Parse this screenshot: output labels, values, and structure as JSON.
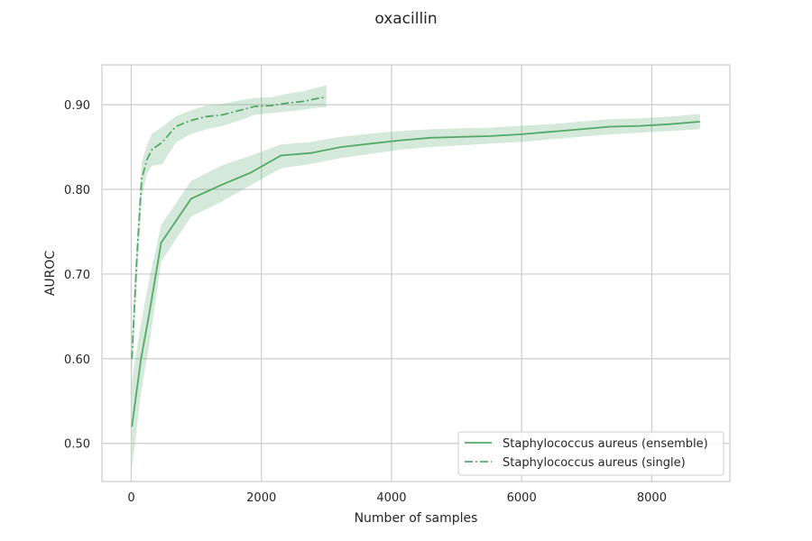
{
  "chart_data": {
    "type": "line",
    "title": "oxacillin",
    "xlabel": "Number of samples",
    "ylabel": "AUROC",
    "xlim": [
      -450,
      9200
    ],
    "ylim": [
      0.455,
      0.947
    ],
    "xticks": [
      0,
      2000,
      4000,
      6000,
      8000
    ],
    "xtick_labels": [
      "0",
      "2000",
      "4000",
      "6000",
      "8000"
    ],
    "yticks": [
      0.5,
      0.6,
      0.7,
      0.8,
      0.9
    ],
    "ytick_labels": [
      "0.50",
      "0.60",
      "0.70",
      "0.80",
      "0.90"
    ],
    "grid": true,
    "legend_position": "lower-right",
    "series": [
      {
        "name": "Staphylococcus aureus (ensemble)",
        "line_style": "solid",
        "color": "#55a868",
        "x": [
          10,
          150,
          280,
          460,
          920,
          1380,
          1840,
          2300,
          2760,
          3220,
          3680,
          4140,
          4600,
          5060,
          5520,
          5980,
          6440,
          6900,
          7360,
          7820,
          8280,
          8740
        ],
        "y": [
          0.52,
          0.6,
          0.655,
          0.737,
          0.789,
          0.805,
          0.82,
          0.84,
          0.843,
          0.85,
          0.854,
          0.858,
          0.861,
          0.862,
          0.863,
          0.865,
          0.868,
          0.871,
          0.874,
          0.875,
          0.877,
          0.88
        ],
        "lower": [
          0.47,
          0.56,
          0.618,
          0.715,
          0.768,
          0.785,
          0.805,
          0.825,
          0.83,
          0.837,
          0.842,
          0.847,
          0.85,
          0.852,
          0.854,
          0.856,
          0.859,
          0.862,
          0.865,
          0.867,
          0.869,
          0.871
        ],
        "upper": [
          0.575,
          0.642,
          0.695,
          0.758,
          0.81,
          0.828,
          0.84,
          0.853,
          0.856,
          0.862,
          0.866,
          0.869,
          0.871,
          0.872,
          0.873,
          0.875,
          0.877,
          0.88,
          0.883,
          0.884,
          0.886,
          0.889
        ]
      },
      {
        "name": "Staphylococcus aureus (single)",
        "line_style": "dashdot",
        "color": "#55a868",
        "x": [
          10,
          80,
          160,
          240,
          320,
          480,
          680,
          900,
          1150,
          1400,
          1650,
          1900,
          2150,
          2400,
          2650,
          2900,
          3000
        ],
        "y": [
          0.6,
          0.71,
          0.812,
          0.835,
          0.847,
          0.856,
          0.874,
          0.881,
          0.886,
          0.888,
          0.893,
          0.898,
          0.899,
          0.902,
          0.904,
          0.908,
          0.909
        ],
        "lower": [
          0.58,
          0.68,
          0.79,
          0.818,
          0.828,
          0.83,
          0.855,
          0.865,
          0.871,
          0.875,
          0.881,
          0.888,
          0.89,
          0.892,
          0.894,
          0.897,
          0.897
        ],
        "upper": [
          0.625,
          0.73,
          0.832,
          0.852,
          0.866,
          0.874,
          0.886,
          0.893,
          0.899,
          0.901,
          0.905,
          0.908,
          0.909,
          0.913,
          0.916,
          0.921,
          0.923
        ]
      }
    ]
  }
}
